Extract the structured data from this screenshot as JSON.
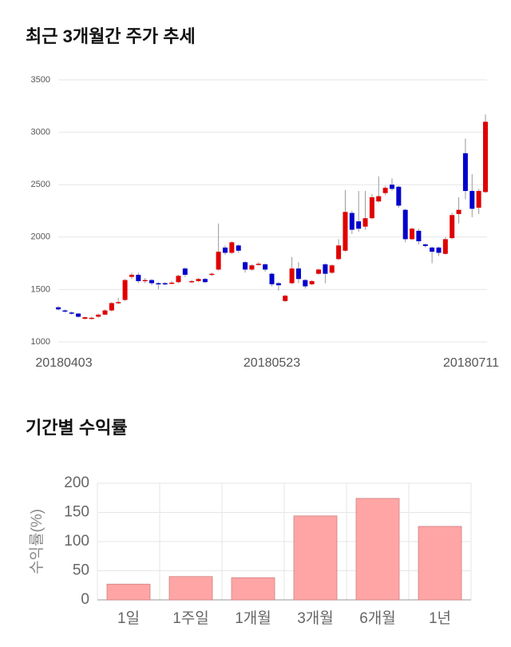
{
  "chart_data": [
    {
      "type": "candlestick",
      "title": "최근 3개월간 주가 추세",
      "categories": [
        "20180403",
        null,
        null,
        null,
        null,
        null,
        null,
        null,
        null,
        null,
        null,
        null,
        null,
        null,
        null,
        null,
        null,
        null,
        null,
        null,
        null,
        null,
        null,
        null,
        null,
        null,
        null,
        null,
        null,
        null,
        null,
        null,
        "20180523",
        null,
        null,
        null,
        null,
        null,
        null,
        null,
        null,
        null,
        null,
        null,
        null,
        null,
        null,
        null,
        null,
        null,
        null,
        null,
        null,
        null,
        null,
        null,
        null,
        null,
        null,
        null,
        null,
        null,
        null,
        null,
        "20180711"
      ],
      "open": [
        1330,
        1300,
        1280,
        1270,
        1220,
        1225,
        1240,
        1260,
        1300,
        1370,
        1400,
        1620,
        1640,
        1580,
        1590,
        1560,
        1560,
        1560,
        1570,
        1700,
        1570,
        1580,
        1600,
        1640,
        1690,
        1900,
        1850,
        1920,
        1760,
        1690,
        1740,
        1740,
        1650,
        1560,
        1390,
        1560,
        1700,
        1590,
        1550,
        1650,
        1740,
        1660,
        1790,
        1870,
        2230,
        2150,
        2100,
        2180,
        2340,
        2420,
        2500,
        2480,
        2260,
        1980,
        2060,
        1930,
        1900,
        1900,
        1840,
        1990,
        2220,
        2800,
        2440,
        2280,
        2430
      ],
      "high": [
        1340,
        1310,
        1290,
        1275,
        1240,
        1240,
        1270,
        1310,
        1380,
        1420,
        1600,
        1660,
        1660,
        1610,
        1600,
        1570,
        1570,
        1580,
        1640,
        1710,
        1590,
        1610,
        1610,
        1660,
        2130,
        1920,
        1960,
        1930,
        1770,
        1740,
        1760,
        1750,
        1660,
        1570,
        1450,
        1810,
        1760,
        1600,
        1590,
        1700,
        1750,
        1740,
        1980,
        2450,
        2250,
        2440,
        2440,
        2410,
        2580,
        2490,
        2560,
        2490,
        2270,
        2090,
        2080,
        1940,
        1910,
        1910,
        2000,
        2230,
        2380,
        2940,
        2600,
        2460,
        3170
      ],
      "low": [
        1300,
        1280,
        1260,
        1230,
        1215,
        1215,
        1230,
        1255,
        1290,
        1360,
        1390,
        1600,
        1560,
        1560,
        1540,
        1500,
        1540,
        1550,
        1560,
        1620,
        1560,
        1570,
        1560,
        1630,
        1680,
        1830,
        1840,
        1850,
        1660,
        1680,
        1730,
        1670,
        1530,
        1490,
        1380,
        1550,
        1560,
        1510,
        1540,
        1640,
        1560,
        1650,
        1780,
        1860,
        2030,
        2050,
        2070,
        2170,
        2330,
        2400,
        2440,
        2280,
        1950,
        1970,
        1930,
        1900,
        1750,
        1820,
        1830,
        1980,
        2130,
        2360,
        2190,
        2220,
        2420
      ],
      "close": [
        1310,
        1290,
        1270,
        1240,
        1235,
        1230,
        1260,
        1300,
        1370,
        1380,
        1590,
        1640,
        1580,
        1590,
        1560,
        1550,
        1550,
        1565,
        1630,
        1640,
        1580,
        1600,
        1570,
        1650,
        1860,
        1850,
        1950,
        1870,
        1690,
        1730,
        1745,
        1690,
        1550,
        1540,
        1440,
        1700,
        1600,
        1530,
        1580,
        1690,
        1650,
        1730,
        1920,
        2240,
        2070,
        2080,
        2180,
        2380,
        2390,
        2470,
        2460,
        2300,
        1980,
        2080,
        1960,
        1915,
        1860,
        1850,
        1980,
        2210,
        2260,
        2440,
        2270,
        2440,
        3100
      ],
      "up_color": "#e00000",
      "down_color": "#0000cc",
      "ylim": [
        1000,
        3500
      ],
      "yticks": [
        1000,
        1500,
        2000,
        2500,
        3000,
        3500
      ],
      "grid": true
    },
    {
      "type": "bar",
      "title": "기간별 수익률",
      "y_label": "수익률(%)",
      "categories": [
        "1일",
        "1주일",
        "1개월",
        "3개월",
        "6개월",
        "1년"
      ],
      "values": [
        27,
        40,
        38,
        144,
        174,
        126
      ],
      "color": "#ffa5a5",
      "ylim": [
        0,
        200
      ],
      "yticks": [
        0,
        50,
        100,
        150,
        200
      ],
      "grid": true
    }
  ]
}
